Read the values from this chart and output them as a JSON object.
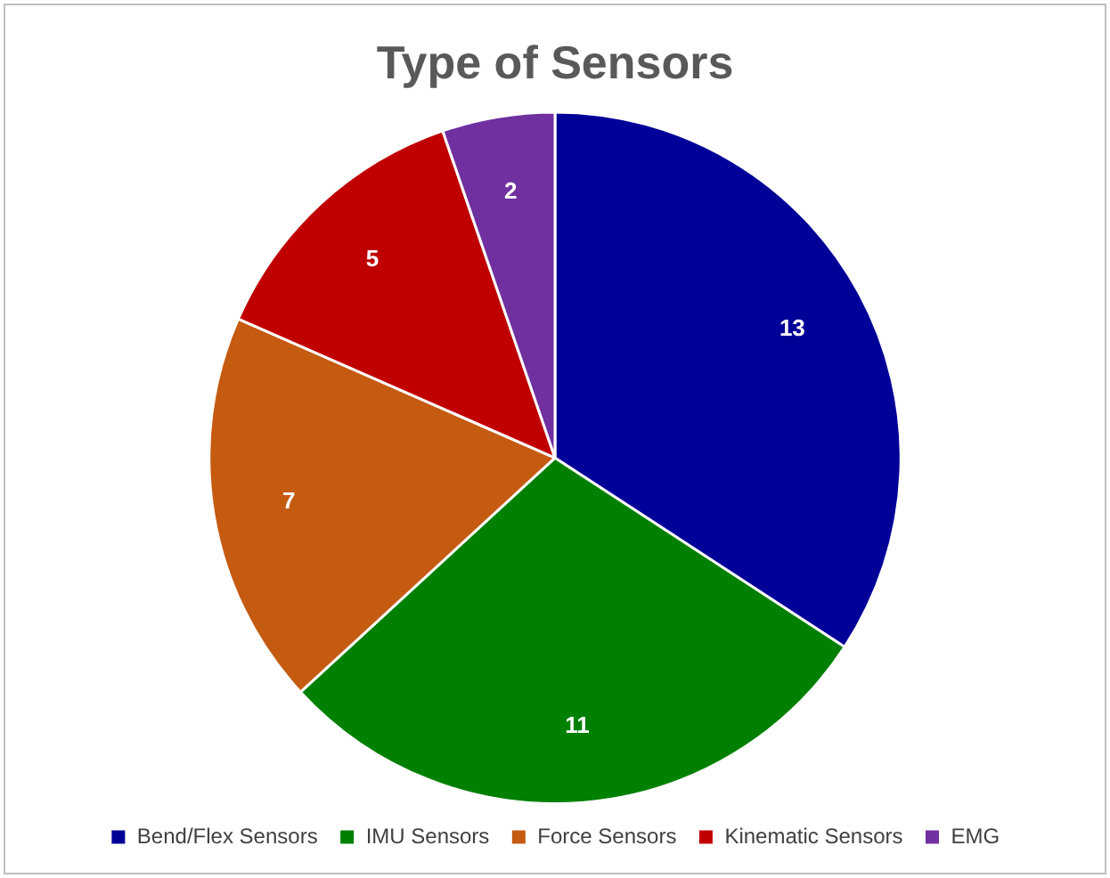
{
  "chart_data": {
    "type": "pie",
    "title": "Type of Sensors",
    "categories": [
      "Bend/Flex Sensors",
      "IMU Sensors",
      "Force Sensors",
      "Kinematic Sensors",
      "EMG"
    ],
    "values": [
      13,
      11,
      7,
      5,
      2
    ],
    "colors": [
      "#000099",
      "#008000",
      "#c55a11",
      "#c00000",
      "#7030a0"
    ],
    "data_labels": true,
    "legend": "bottom"
  }
}
